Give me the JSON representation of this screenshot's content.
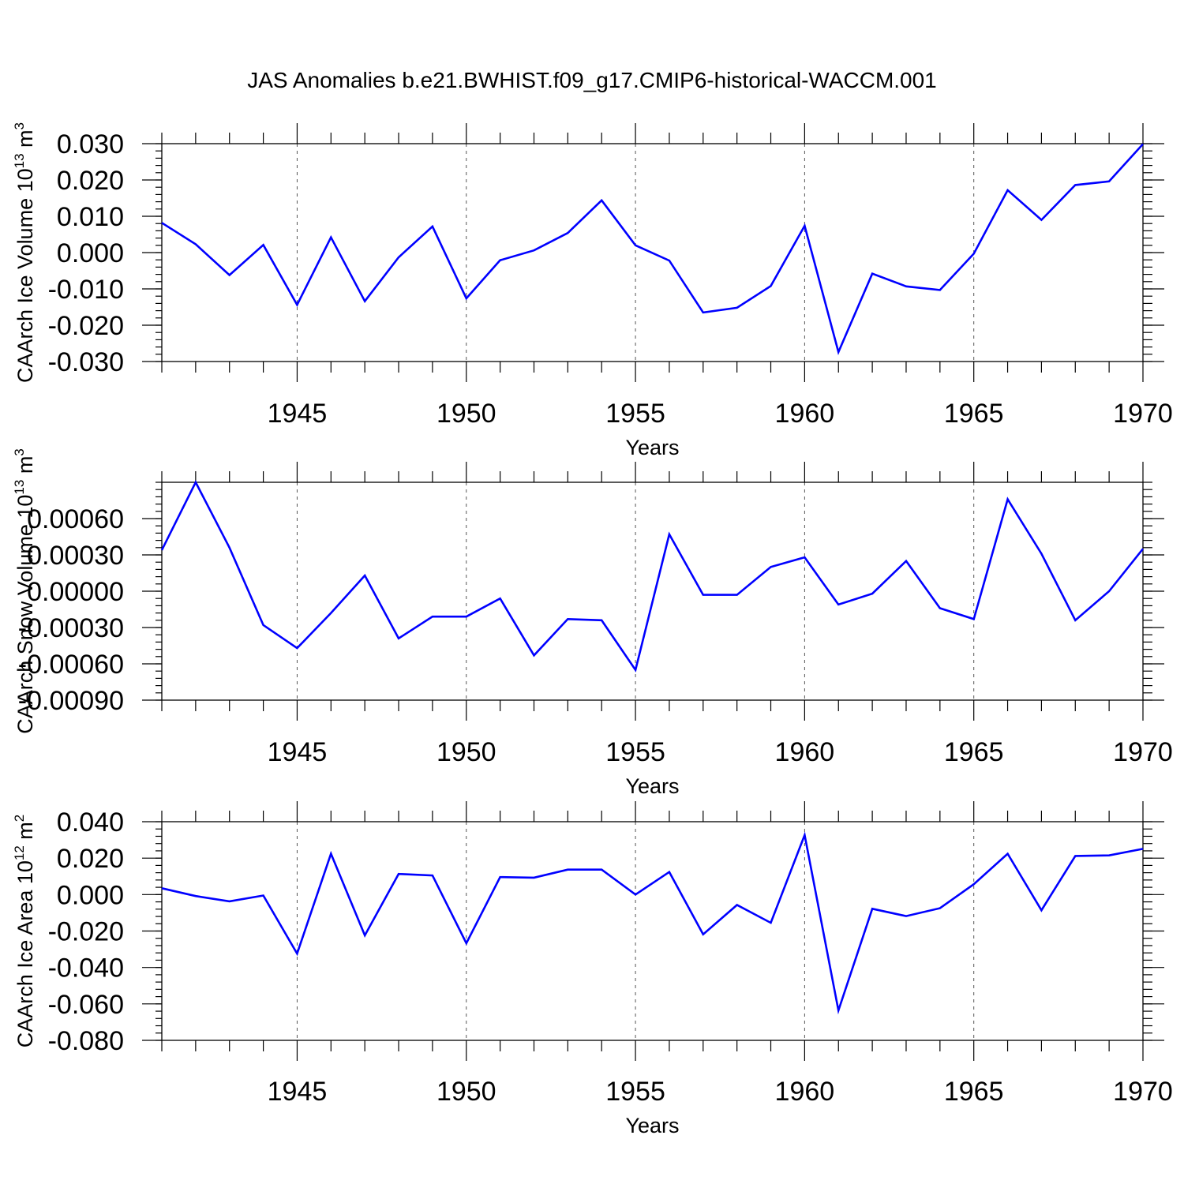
{
  "title": "JAS Anomalies b.e21.BWHIST.f09_g17.CMIP6-historical-WACCM.001",
  "colors": {
    "series": "#0000ff",
    "axis": "#000000",
    "grid": "#555555"
  },
  "chart_data": [
    {
      "type": "line",
      "xlabel": "Years",
      "ylabel": "CAArch Ice Volume 10",
      "ylabel_exp": "13",
      "ylabel_unit": " m",
      "ylabel_unit_exp": "3",
      "xlim": [
        1941,
        1970
      ],
      "ylim": [
        -0.03,
        0.03
      ],
      "x_ticks": [
        1945,
        1950,
        1955,
        1960,
        1965,
        1970
      ],
      "y_ticks": [
        -0.03,
        -0.02,
        -0.01,
        0.0,
        0.01,
        0.02,
        0.03
      ],
      "y_tick_labels": [
        "-0.030",
        "-0.020",
        "-0.010",
        "0.000",
        "0.010",
        "0.020",
        "0.030"
      ],
      "y_minor_step": 0.002,
      "grid": "vertical dashed at major x ticks",
      "series": [
        {
          "x": [
            1941,
            1942,
            1943,
            1944,
            1945,
            1946,
            1947,
            1948,
            1949,
            1950,
            1951,
            1952,
            1953,
            1954,
            1955,
            1956,
            1957,
            1958,
            1959,
            1960,
            1961,
            1962,
            1963,
            1964,
            1965,
            1966,
            1967,
            1968,
            1969,
            1970
          ],
          "values": [
            0.0082,
            0.0023,
            -0.0062,
            0.0021,
            -0.0144,
            0.0042,
            -0.0134,
            -0.0013,
            0.0072,
            -0.0126,
            -0.0021,
            0.0006,
            0.0054,
            0.0144,
            0.002,
            -0.0022,
            -0.0165,
            -0.0152,
            -0.0092,
            0.0074,
            -0.0274,
            -0.0058,
            -0.0093,
            -0.0103,
            -0.0003,
            0.0172,
            0.009,
            0.0186,
            0.0196,
            0.0299
          ]
        }
      ]
    },
    {
      "type": "line",
      "xlabel": "Years",
      "ylabel": "CAArch Snow Volume 10",
      "ylabel_exp": "13",
      "ylabel_unit": " m",
      "ylabel_unit_exp": "3",
      "xlim": [
        1941,
        1970
      ],
      "ylim": [
        -0.0009,
        0.0009
      ],
      "x_ticks": [
        1945,
        1950,
        1955,
        1960,
        1965,
        1970
      ],
      "y_ticks": [
        -0.0009,
        -0.0006,
        -0.0003,
        0.0,
        0.0003,
        0.0006
      ],
      "y_tick_labels": [
        "-0.00090",
        "-0.00060",
        "-0.00030",
        "0.00000",
        "0.00030",
        "0.00060"
      ],
      "y_minor_step": 6e-05,
      "grid": "vertical dashed at major x ticks",
      "series": [
        {
          "x": [
            1941,
            1942,
            1943,
            1944,
            1945,
            1946,
            1947,
            1948,
            1949,
            1950,
            1951,
            1952,
            1953,
            1954,
            1955,
            1956,
            1957,
            1958,
            1959,
            1960,
            1961,
            1962,
            1963,
            1964,
            1965,
            1966,
            1967,
            1968,
            1969,
            1970
          ],
          "values": [
            0.00034,
            0.0009,
            0.00036,
            -0.00028,
            -0.00047,
            -0.00018,
            0.00013,
            -0.00039,
            -0.00021,
            -0.00021,
            -6e-05,
            -0.00053,
            -0.00023,
            -0.00024,
            -0.00065,
            0.00047,
            -3e-05,
            -3e-05,
            0.0002,
            0.00028,
            -0.00011,
            -2e-05,
            0.00025,
            -0.00014,
            -0.00023,
            0.00076,
            0.00031,
            -0.00024,
            0.0,
            0.00035
          ]
        }
      ]
    },
    {
      "type": "line",
      "xlabel": "Years",
      "ylabel": "CAArch Ice Area 10",
      "ylabel_exp": "12",
      "ylabel_unit": " m",
      "ylabel_unit_exp": "2",
      "xlim": [
        1941,
        1970
      ],
      "ylim": [
        -0.08,
        0.04
      ],
      "x_ticks": [
        1945,
        1950,
        1955,
        1960,
        1965,
        1970
      ],
      "y_ticks": [
        -0.08,
        -0.06,
        -0.04,
        -0.02,
        0.0,
        0.02,
        0.04
      ],
      "y_tick_labels": [
        "-0.080",
        "-0.060",
        "-0.040",
        "-0.020",
        "0.000",
        "0.020",
        "0.040"
      ],
      "y_minor_step": 0.004,
      "grid": "vertical dashed at major x ticks",
      "series": [
        {
          "x": [
            1941,
            1942,
            1943,
            1944,
            1945,
            1946,
            1947,
            1948,
            1949,
            1950,
            1951,
            1952,
            1953,
            1954,
            1955,
            1956,
            1957,
            1958,
            1959,
            1960,
            1961,
            1962,
            1963,
            1964,
            1965,
            1966,
            1967,
            1968,
            1969,
            1970
          ],
          "values": [
            0.0035,
            -0.0008,
            -0.0037,
            -0.0005,
            -0.0324,
            0.0224,
            -0.0224,
            0.0113,
            0.0105,
            -0.0267,
            0.0096,
            0.0093,
            0.0137,
            0.0137,
            0.0,
            0.0124,
            -0.0218,
            -0.0057,
            -0.0155,
            0.0327,
            -0.0636,
            -0.0078,
            -0.0118,
            -0.0075,
            0.0057,
            0.0224,
            -0.0086,
            0.0212,
            0.0215,
            0.0251
          ]
        }
      ]
    }
  ]
}
